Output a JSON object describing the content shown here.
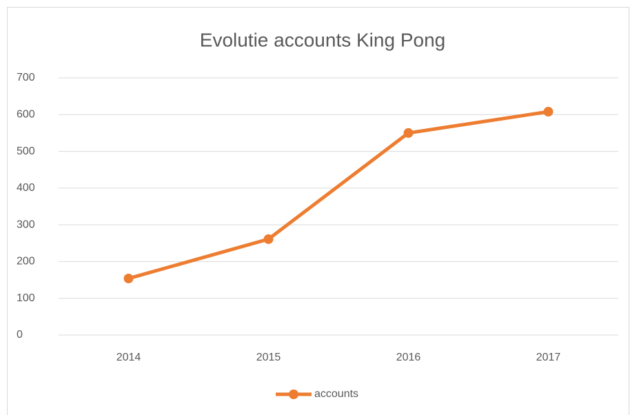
{
  "chart_data": {
    "type": "line",
    "title": "Evolutie accounts King Pong",
    "categories": [
      "2014",
      "2015",
      "2016",
      "2017"
    ],
    "series": [
      {
        "name": "accounts",
        "color": "#ed7d31",
        "values": [
          154,
          261,
          550,
          608
        ]
      }
    ],
    "ylim": [
      0,
      700
    ],
    "yticks": [
      0,
      100,
      200,
      300,
      400,
      500,
      600,
      700
    ],
    "grid": true,
    "legend": "bottom"
  }
}
